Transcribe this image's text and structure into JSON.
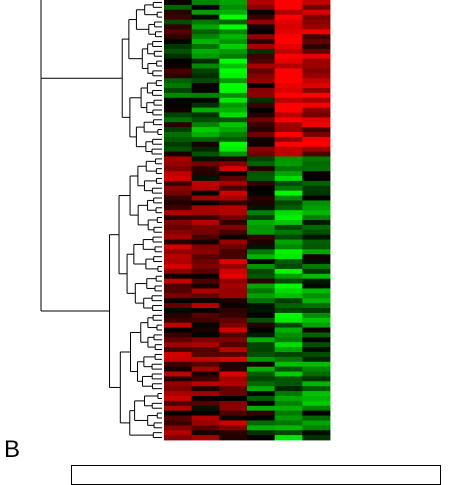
{
  "panel_label": "B",
  "chart_data": {
    "type": "heatmap",
    "title": "",
    "xlabel": "",
    "ylabel": "",
    "columns": 6,
    "rows": 90,
    "color_scale": {
      "low": "#00ff00",
      "mid": "#000000",
      "high": "#ff0000",
      "range": [
        -1,
        1
      ]
    },
    "dendrogram": {
      "side": "left",
      "clusters": 2
    },
    "clusters": [
      {
        "name": "",
        "row_count": 32,
        "profile": [
          -0.1,
          -0.35,
          -0.75,
          0.25,
          0.95,
          0.6
        ]
      },
      {
        "name": "",
        "row_count": 58,
        "profile": [
          0.4,
          0.35,
          0.45,
          -0.25,
          -0.55,
          -0.35
        ]
      }
    ]
  },
  "colors": {
    "background": "#ffffff",
    "line": "#000000"
  }
}
